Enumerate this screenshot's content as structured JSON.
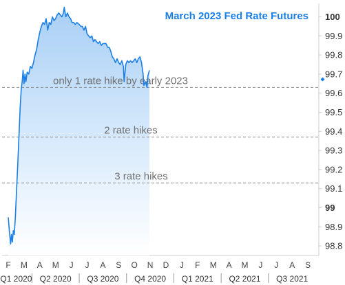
{
  "chart_data": {
    "type": "area",
    "title": "March 2023 Fed Rate Futures",
    "xlabel": "",
    "ylabel": "",
    "ylim": [
      98.75,
      100.07
    ],
    "y_ticks": [
      "100",
      "99.9",
      "99.8",
      "99.7",
      "99.6",
      "99.5",
      "99.4",
      "99.3",
      "99.2",
      "99.1",
      "99",
      "98.9",
      "98.8"
    ],
    "x_months": [
      "F",
      "M",
      "A",
      "M",
      "J",
      "J",
      "A",
      "S",
      "O",
      "N",
      "D",
      "J",
      "F",
      "M",
      "A",
      "M",
      "J",
      "J",
      "A",
      "S"
    ],
    "x_quarters": [
      "Q1 2020",
      "Q2 2020",
      "Q3 2020",
      "Q4 2020",
      "Q1 2021",
      "Q2 2021",
      "Q3 2021"
    ],
    "current_value": 99.7,
    "reference_lines": [
      {
        "label": "only 1 rate hike by early 2023",
        "value": 99.63
      },
      {
        "label": "2 rate hikes",
        "value": 99.37
      },
      {
        "label": "3 rate hikes",
        "value": 99.13
      }
    ],
    "series": [
      {
        "points": [
          [
            0.0,
            98.95
          ],
          [
            0.08,
            98.87
          ],
          [
            0.15,
            98.81
          ],
          [
            0.2,
            98.86
          ],
          [
            0.26,
            98.82
          ],
          [
            0.32,
            98.88
          ],
          [
            0.38,
            98.86
          ],
          [
            0.45,
            98.95
          ],
          [
            0.52,
            99.08
          ],
          [
            0.6,
            99.22
          ],
          [
            0.68,
            99.38
          ],
          [
            0.75,
            99.52
          ],
          [
            0.82,
            99.62
          ],
          [
            0.88,
            99.66
          ],
          [
            0.94,
            99.72
          ],
          [
            1.0,
            99.65
          ],
          [
            1.06,
            99.7
          ],
          [
            1.12,
            99.66
          ],
          [
            1.2,
            99.71
          ],
          [
            1.3,
            99.7
          ],
          [
            1.4,
            99.74
          ],
          [
            1.5,
            99.73
          ],
          [
            1.6,
            99.76
          ],
          [
            1.7,
            99.8
          ],
          [
            1.8,
            99.83
          ],
          [
            1.9,
            99.88
          ],
          [
            2.0,
            99.92
          ],
          [
            2.1,
            99.95
          ],
          [
            2.2,
            99.97
          ],
          [
            2.3,
            99.96
          ],
          [
            2.4,
            99.99
          ],
          [
            2.5,
            99.93
          ],
          [
            2.6,
            99.97
          ],
          [
            2.7,
            99.96
          ],
          [
            2.8,
            100.0
          ],
          [
            2.9,
            99.98
          ],
          [
            3.0,
            99.99
          ],
          [
            3.1,
            100.01
          ],
          [
            3.2,
            100.02
          ],
          [
            3.3,
            100.01
          ],
          [
            3.4,
            100.0
          ],
          [
            3.5,
            100.02
          ],
          [
            3.55,
            100.05
          ],
          [
            3.65,
            100.0
          ],
          [
            3.75,
            100.02
          ],
          [
            3.85,
            100.0
          ],
          [
            3.95,
            99.99
          ],
          [
            4.05,
            99.97
          ],
          [
            4.15,
            99.97
          ],
          [
            4.25,
            99.96
          ],
          [
            4.35,
            99.97
          ],
          [
            4.5,
            99.96
          ],
          [
            4.6,
            99.95
          ],
          [
            4.7,
            99.95
          ],
          [
            4.8,
            99.93
          ],
          [
            4.9,
            99.95
          ],
          [
            5.0,
            99.91
          ],
          [
            5.1,
            99.9
          ],
          [
            5.2,
            99.89
          ],
          [
            5.3,
            99.9
          ],
          [
            5.4,
            99.87
          ],
          [
            5.5,
            99.88
          ],
          [
            5.6,
            99.87
          ],
          [
            5.7,
            99.86
          ],
          [
            5.8,
            99.87
          ],
          [
            5.9,
            99.85
          ],
          [
            6.0,
            99.86
          ],
          [
            6.1,
            99.86
          ],
          [
            6.2,
            99.86
          ],
          [
            6.3,
            99.84
          ],
          [
            6.4,
            99.84
          ],
          [
            6.5,
            99.82
          ],
          [
            6.6,
            99.79
          ],
          [
            6.7,
            99.78
          ],
          [
            6.8,
            99.76
          ],
          [
            6.9,
            99.78
          ],
          [
            7.0,
            99.76
          ],
          [
            7.1,
            99.75
          ],
          [
            7.2,
            99.77
          ],
          [
            7.3,
            99.74
          ],
          [
            7.35,
            99.66
          ],
          [
            7.45,
            99.75
          ],
          [
            7.55,
            99.77
          ],
          [
            7.65,
            99.76
          ],
          [
            7.75,
            99.77
          ],
          [
            7.85,
            99.76
          ],
          [
            7.95,
            99.77
          ],
          [
            8.05,
            99.78
          ],
          [
            8.15,
            99.76
          ],
          [
            8.25,
            99.78
          ],
          [
            8.35,
            99.79
          ],
          [
            8.45,
            99.76
          ],
          [
            8.55,
            99.7
          ],
          [
            8.6,
            99.64
          ],
          [
            8.7,
            99.66
          ],
          [
            8.8,
            99.63
          ],
          [
            8.85,
            99.69
          ],
          [
            8.95,
            99.72
          ]
        ]
      }
    ]
  }
}
